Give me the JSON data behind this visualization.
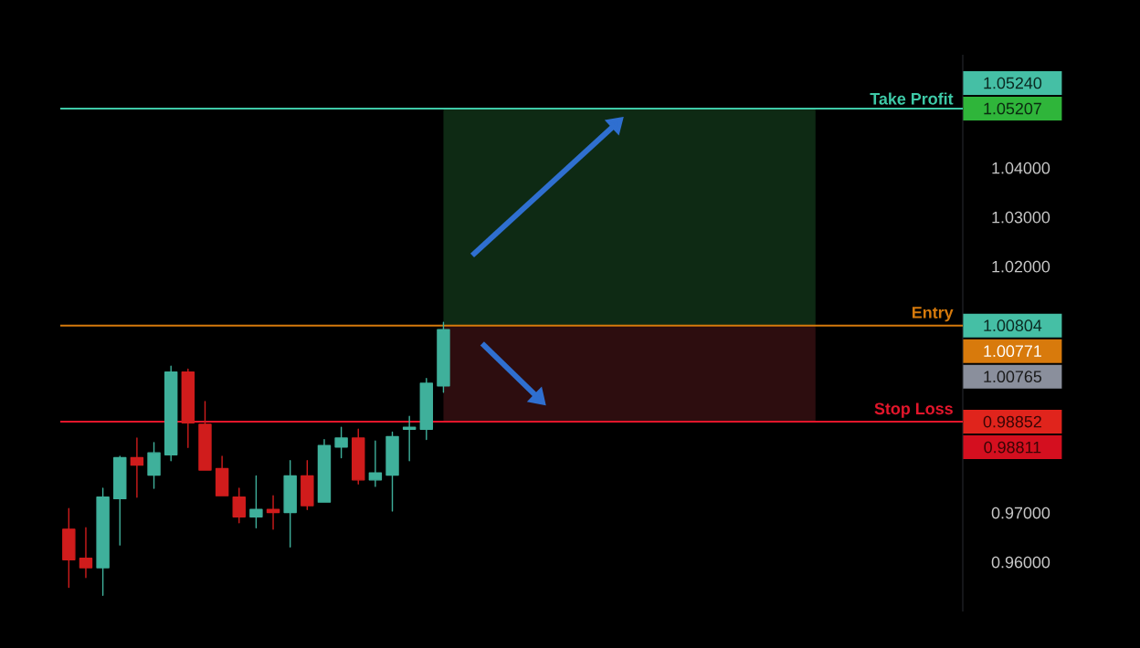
{
  "chart_data": {
    "type": "candlestick",
    "categories": [
      null,
      null,
      null,
      null,
      null,
      null,
      null,
      null,
      null,
      null,
      null,
      null,
      null,
      null,
      null,
      null,
      null,
      null,
      null,
      null,
      null,
      null,
      null,
      null,
      null,
      null,
      null,
      null,
      null,
      null,
      null,
      null,
      null,
      null,
      null,
      null,
      null,
      null,
      null,
      null,
      null,
      null,
      null,
      null,
      null,
      null,
      null,
      null,
      null,
      null,
      null,
      null,
      null
    ],
    "ohlc": [
      [
        0.9667,
        0.9709,
        0.9549,
        0.9605
      ],
      [
        0.9608,
        0.967,
        0.9569,
        0.9589
      ],
      [
        0.9589,
        0.975,
        0.9533,
        0.9732
      ],
      [
        0.9729,
        0.9815,
        0.9635,
        0.9812
      ],
      [
        0.9812,
        0.9852,
        0.9732,
        0.9797
      ],
      [
        0.9777,
        0.9843,
        0.975,
        0.9822
      ],
      [
        0.9818,
        0.9998,
        0.9806,
        0.9986
      ],
      [
        0.9986,
        0.9992,
        0.9833,
        0.9883
      ],
      [
        0.988,
        0.9926,
        0.9787,
        0.9787
      ],
      [
        0.979,
        0.9815,
        0.9735,
        0.9735
      ],
      [
        0.9732,
        0.975,
        0.968,
        0.9692
      ],
      [
        0.9692,
        0.9775,
        0.967,
        0.9707
      ],
      [
        0.9707,
        0.9735,
        0.9667,
        0.9701
      ],
      [
        0.9701,
        0.9806,
        0.9631,
        0.9775
      ],
      [
        0.9775,
        0.9806,
        0.9707,
        0.9715
      ],
      [
        0.9722,
        0.9849,
        0.9722,
        0.9837
      ],
      [
        0.9834,
        0.9874,
        0.9812,
        0.9852
      ],
      [
        0.9852,
        0.987,
        0.9759,
        0.9767
      ],
      [
        0.9767,
        0.9846,
        0.9754,
        0.9781
      ],
      [
        0.9777,
        0.9864,
        0.9704,
        0.9855
      ],
      [
        0.987,
        0.9896,
        0.9806,
        0.9874
      ],
      [
        0.987,
        0.9973,
        0.9849,
        0.9963
      ],
      [
        0.9958,
        1.0087,
        0.9945,
        1.0072
      ],
      null,
      null,
      null,
      null,
      null,
      null,
      null,
      null,
      null,
      null,
      null,
      null,
      null,
      null,
      null,
      null,
      null,
      null,
      null,
      null,
      null,
      null,
      null,
      null,
      null,
      null,
      null,
      null,
      null,
      null
    ],
    "colors": [
      "#d01c1c",
      "#d01c1c",
      "#3fb09b",
      "#3fb09b",
      "#d01c1c",
      "#3fb09b",
      "#3fb09b",
      "#d01c1c",
      "#d01c1c",
      "#d01c1c",
      "#d01c1c",
      "#3fb09b",
      "#d01c1c",
      "#3fb09b",
      "#d01c1c",
      "#3fb09b",
      "#3fb09b",
      "#d01c1c",
      "#3fb09b",
      "#3fb09b",
      "#3fb09b",
      "#3fb09b",
      "#3fb09b",
      null,
      null,
      null,
      null,
      null,
      null,
      null,
      null,
      null,
      null,
      null,
      null,
      null,
      null,
      null,
      null,
      null,
      null,
      null,
      null,
      null,
      null,
      null,
      null,
      null,
      null,
      null,
      null,
      null,
      null
    ],
    "ylim": [
      0.95,
      1.063
    ],
    "yticks": [
      {
        "value": 0.96,
        "label": "0.96000"
      },
      {
        "value": 0.97,
        "label": "0.97000"
      },
      {
        "value": 1.02,
        "label": "1.02000"
      },
      {
        "value": 1.03,
        "label": "1.03000"
      },
      {
        "value": 1.04,
        "label": "1.04000"
      }
    ],
    "tick_labels": "y",
    "grid": false,
    "ref_lines": [
      {
        "axis": "y",
        "value": 1.05207,
        "label": "Take Profit",
        "color": "#3ec9a7"
      },
      {
        "axis": "y",
        "value": 1.00804,
        "label": "Entry",
        "color": "#d67a0c"
      },
      {
        "axis": "y",
        "value": 0.98852,
        "label": "Stop Loss",
        "color": "#e3162b"
      }
    ],
    "bands": [
      {
        "axis": "y",
        "from": 1.00804,
        "to": 1.05207,
        "color": "#0e2a14"
      },
      {
        "axis": "y",
        "from": 0.98852,
        "to": 1.00804,
        "color": "#2d0d0f"
      }
    ],
    "annotations": [
      "1.05240",
      "1.05207",
      "1.00804",
      "1.00771",
      "1.00765",
      "0.98852",
      "0.98811"
    ]
  }
}
